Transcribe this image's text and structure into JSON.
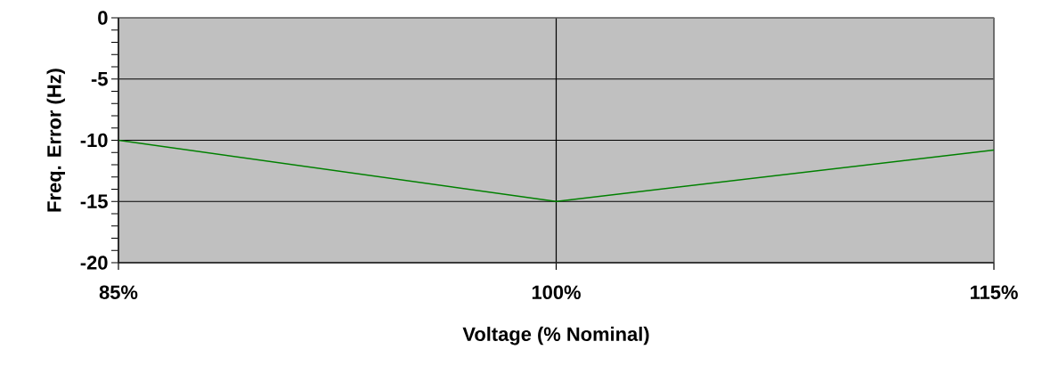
{
  "chart_data": {
    "type": "line",
    "xlabel": "Voltage (% Nominal)",
    "ylabel": "Freq. Error (Hz)",
    "x": [
      85,
      100,
      115
    ],
    "series": [
      {
        "color": "#008000",
        "values": [
          -10,
          -15,
          -10.8
        ]
      }
    ],
    "xlim": [
      85,
      115
    ],
    "xticks": [
      {
        "value": 85,
        "label": "85%"
      },
      {
        "value": 100,
        "label": "100%"
      },
      {
        "value": 115,
        "label": "115%"
      }
    ],
    "ylim": [
      -20,
      0
    ],
    "yticks": [
      -20,
      -15,
      -10,
      -5,
      0
    ],
    "grid": true,
    "marker": "none",
    "line_style": "solid"
  }
}
